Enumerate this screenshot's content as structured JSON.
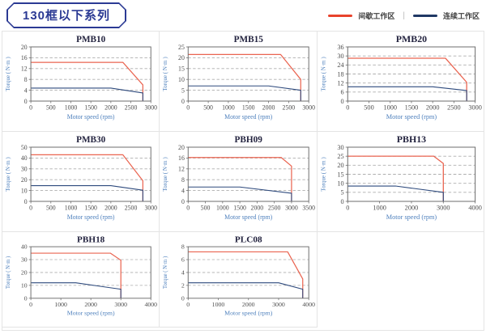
{
  "header": {
    "title": "130框以下系列",
    "legend": [
      {
        "label": "间歇工作区",
        "color": "#e8432c"
      },
      {
        "label": "连续工作区",
        "color": "#1f3864"
      }
    ],
    "legend_separator": "|"
  },
  "axis": {
    "xlabel": "Motor speed (rpm)",
    "ylabel": "Torque ( N·m )"
  },
  "colors": {
    "intermittent": "#ea6450",
    "continuous": "#2e4a7d",
    "grid": "#aeaeae",
    "plot_border": "#6e6e6e",
    "tick_text": "#4c4c4c",
    "axis_label_text": "#4f81bd",
    "chart_title_text": "#23233f",
    "panel_border": "#e4e4e4",
    "tag_border": "#2b3a94"
  },
  "chart_data": [
    {
      "type": "line",
      "title": "PMB10",
      "xlabel": "Motor speed (rpm)",
      "ylabel": "Torque ( N·m )",
      "xlim": [
        0,
        3000
      ],
      "xticks": [
        0,
        500,
        1000,
        1500,
        2000,
        2500,
        3000
      ],
      "ylim": [
        0,
        20
      ],
      "yticks": [
        0,
        4,
        8,
        12,
        16,
        20
      ],
      "grid": "dashed-horizontal",
      "series": [
        {
          "name": "间歇工作区",
          "color": "#ea6450",
          "points": [
            [
              0,
              14.3
            ],
            [
              2300,
              14.3
            ],
            [
              2800,
              6
            ],
            [
              2800,
              0
            ]
          ]
        },
        {
          "name": "连续工作区",
          "color": "#2e4a7d",
          "points": [
            [
              0,
              4.8
            ],
            [
              2000,
              4.8
            ],
            [
              2800,
              3
            ],
            [
              2800,
              0
            ]
          ]
        }
      ]
    },
    {
      "type": "line",
      "title": "PMB15",
      "xlabel": "Motor speed (rpm)",
      "ylabel": "Torque ( N·m )",
      "xlim": [
        0,
        3000
      ],
      "xticks": [
        0,
        500,
        1000,
        1500,
        2000,
        2500,
        3000
      ],
      "ylim": [
        0,
        25
      ],
      "yticks": [
        0,
        5,
        10,
        15,
        20,
        25
      ],
      "grid": "dashed-horizontal",
      "series": [
        {
          "name": "间歇工作区",
          "color": "#ea6450",
          "points": [
            [
              0,
              21.5
            ],
            [
              2300,
              21.5
            ],
            [
              2800,
              10
            ],
            [
              2800,
              0
            ]
          ]
        },
        {
          "name": "连续工作区",
          "color": "#2e4a7d",
          "points": [
            [
              0,
              7
            ],
            [
              2000,
              7
            ],
            [
              2800,
              5
            ],
            [
              2800,
              0
            ]
          ]
        }
      ]
    },
    {
      "type": "line",
      "title": "PMB20",
      "xlabel": "Motor speed (rpm)",
      "ylabel": "Torque ( N·m )",
      "xlim": [
        0,
        3000
      ],
      "xticks": [
        0,
        500,
        1000,
        1500,
        2000,
        2500,
        3000
      ],
      "ylim": [
        0,
        36
      ],
      "yticks": [
        0,
        6,
        12,
        18,
        24,
        30,
        36
      ],
      "grid": "dashed-horizontal",
      "series": [
        {
          "name": "间歇工作区",
          "color": "#ea6450",
          "points": [
            [
              0,
              28.5
            ],
            [
              2300,
              28.5
            ],
            [
              2800,
              12.5
            ],
            [
              2800,
              0
            ]
          ]
        },
        {
          "name": "连续工作区",
          "color": "#2e4a7d",
          "points": [
            [
              0,
              9.5
            ],
            [
              2000,
              9.5
            ],
            [
              2800,
              7
            ],
            [
              2800,
              0
            ]
          ]
        }
      ]
    },
    {
      "type": "line",
      "title": "PMB30",
      "xlabel": "Motor speed (rpm)",
      "ylabel": "Torque ( N·m )",
      "xlim": [
        0,
        3000
      ],
      "xticks": [
        0,
        500,
        1000,
        1500,
        2000,
        2500,
        3000
      ],
      "ylim": [
        0,
        50
      ],
      "yticks": [
        0,
        10,
        20,
        30,
        40,
        50
      ],
      "grid": "dashed-horizontal",
      "series": [
        {
          "name": "间歇工作区",
          "color": "#ea6450",
          "points": [
            [
              0,
              43
            ],
            [
              2300,
              43
            ],
            [
              2800,
              19
            ],
            [
              2800,
              0
            ]
          ]
        },
        {
          "name": "连续工作区",
          "color": "#2e4a7d",
          "points": [
            [
              0,
              14.5
            ],
            [
              2000,
              14.5
            ],
            [
              2800,
              10.3
            ],
            [
              2800,
              0
            ]
          ]
        }
      ]
    },
    {
      "type": "line",
      "title": "PBH09",
      "xlabel": "Motor speed (rpm)",
      "ylabel": "Torque ( N·m )",
      "xlim": [
        0,
        3500
      ],
      "xticks": [
        0,
        500,
        1000,
        1500,
        2000,
        2500,
        3000,
        3500
      ],
      "ylim": [
        0,
        20
      ],
      "yticks": [
        0,
        4,
        8,
        12,
        16,
        20
      ],
      "grid": "dashed-horizontal",
      "series": [
        {
          "name": "间歇工作区",
          "color": "#ea6450",
          "points": [
            [
              0,
              16.2
            ],
            [
              2700,
              16.2
            ],
            [
              3000,
              13
            ],
            [
              3000,
              0
            ]
          ]
        },
        {
          "name": "连续工作区",
          "color": "#2e4a7d",
          "points": [
            [
              0,
              5.3
            ],
            [
              1500,
              5.3
            ],
            [
              3000,
              3
            ],
            [
              3000,
              0
            ]
          ]
        }
      ]
    },
    {
      "type": "line",
      "title": "PBH13",
      "xlabel": "Motor speed (rpm)",
      "ylabel": "Torque ( N·m )",
      "xlim": [
        0,
        4000
      ],
      "xticks": [
        0,
        1000,
        2000,
        3000,
        4000
      ],
      "ylim": [
        0,
        30
      ],
      "yticks": [
        0,
        5,
        10,
        15,
        20,
        25,
        30
      ],
      "grid": "dashed-horizontal",
      "series": [
        {
          "name": "间歇工作区",
          "color": "#ea6450",
          "points": [
            [
              0,
              25
            ],
            [
              2700,
              25
            ],
            [
              3000,
              21
            ],
            [
              3000,
              0
            ]
          ]
        },
        {
          "name": "连续工作区",
          "color": "#2e4a7d",
          "points": [
            [
              0,
              8.5
            ],
            [
              1500,
              8.5
            ],
            [
              3000,
              5
            ],
            [
              3000,
              0
            ]
          ]
        }
      ]
    },
    {
      "type": "line",
      "title": "PBH18",
      "xlabel": "Motor speed (rpm)",
      "ylabel": "Torque ( N·m )",
      "xlim": [
        0,
        4000
      ],
      "xticks": [
        0,
        1000,
        2000,
        3000,
        4000
      ],
      "ylim": [
        0,
        40
      ],
      "yticks": [
        0,
        10,
        20,
        30,
        40
      ],
      "grid": "dashed-horizontal",
      "series": [
        {
          "name": "间歇工作区",
          "color": "#ea6450",
          "points": [
            [
              0,
              35
            ],
            [
              2650,
              35
            ],
            [
              3000,
              29.5
            ],
            [
              3000,
              0
            ]
          ]
        },
        {
          "name": "连续工作区",
          "color": "#2e4a7d",
          "points": [
            [
              0,
              12
            ],
            [
              1500,
              12
            ],
            [
              3000,
              7
            ],
            [
              3000,
              0
            ]
          ]
        }
      ]
    },
    {
      "type": "line",
      "title": "PLC08",
      "xlabel": "Motor speed (rpm)",
      "ylabel": "Torque ( N·m )",
      "xlim": [
        0,
        4000
      ],
      "xticks": [
        0,
        1000,
        2000,
        3000,
        4000
      ],
      "ylim": [
        0,
        8
      ],
      "yticks": [
        0,
        2,
        4,
        6,
        8
      ],
      "grid": "dashed-horizontal",
      "series": [
        {
          "name": "间歇工作区",
          "color": "#ea6450",
          "points": [
            [
              0,
              7.2
            ],
            [
              3300,
              7.2
            ],
            [
              3800,
              3
            ],
            [
              3800,
              0
            ]
          ]
        },
        {
          "name": "连续工作区",
          "color": "#2e4a7d",
          "points": [
            [
              0,
              2.4
            ],
            [
              3000,
              2.4
            ],
            [
              3800,
              1.4
            ],
            [
              3800,
              0
            ]
          ]
        }
      ]
    }
  ]
}
